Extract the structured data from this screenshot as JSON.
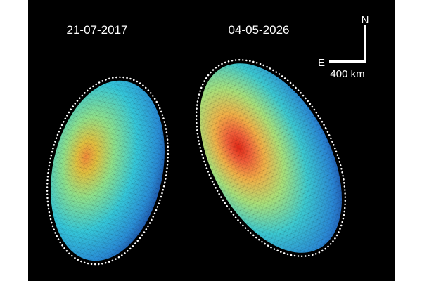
{
  "labels": {
    "left_date": "21-07-2017",
    "right_date": "04-05-2026"
  },
  "scale_bar": {
    "north": "N",
    "east": "E",
    "length": "400 km"
  }
}
